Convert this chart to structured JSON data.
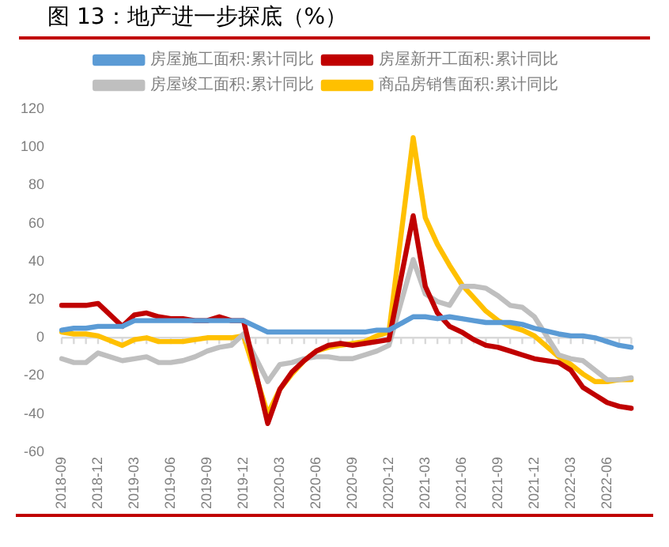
{
  "chart_data": {
    "type": "line",
    "title": "图 13：地产进一步探底（%）",
    "categories": [
      "2018-09",
      null,
      null,
      "2018-12",
      null,
      null,
      "2019-03",
      null,
      null,
      "2019-06",
      null,
      null,
      "2019-09",
      null,
      null,
      "2019-12",
      null,
      null,
      "2020-03",
      null,
      null,
      "2020-06",
      null,
      null,
      "2020-09",
      null,
      null,
      "2020-12",
      null,
      null,
      "2021-03",
      null,
      null,
      "2021-06",
      null,
      null,
      "2021-09",
      null,
      null,
      "2021-12",
      null,
      null,
      "2022-03",
      null,
      null,
      "2022-06",
      null,
      null
    ],
    "series": [
      {
        "name": "房屋施工面积:累计同比",
        "color": "#5b9bd5",
        "values": [
          4,
          5,
          5,
          6,
          null,
          6,
          9,
          9,
          9,
          9,
          9,
          9,
          9,
          9,
          9,
          9,
          null,
          3,
          3,
          3,
          3,
          3,
          3,
          3,
          3,
          3,
          4,
          4,
          null,
          11,
          11,
          10,
          11,
          10,
          9,
          8,
          8,
          8,
          7,
          5,
          null,
          2,
          1,
          1,
          0,
          -2,
          -4,
          -5
        ]
      },
      {
        "name": "房屋新开工面积:累计同比",
        "color": "#c00000",
        "values": [
          17,
          17,
          17,
          18,
          null,
          6,
          12,
          13,
          11,
          10,
          10,
          9,
          9,
          11,
          9,
          9,
          null,
          -45,
          -27,
          -18,
          -12,
          -7,
          -4,
          -3,
          -4,
          -3,
          -2,
          -1,
          null,
          64,
          27,
          13,
          6,
          3,
          -1,
          -4,
          -5,
          -7,
          -9,
          -11,
          null,
          -13,
          -17,
          -26,
          -30,
          -34,
          -36,
          -37
        ]
      },
      {
        "name": "房屋竣工面积:累计同比",
        "color": "#bfbfbf",
        "values": [
          -11,
          -13,
          -13,
          -8,
          null,
          -12,
          -11,
          -10,
          -13,
          -13,
          -12,
          -10,
          -7,
          -5,
          -4,
          2,
          null,
          -23,
          -14,
          -13,
          -11,
          -10,
          -10,
          -11,
          -11,
          -9,
          -7,
          -4,
          null,
          41,
          23,
          19,
          17,
          27,
          27,
          26,
          22,
          17,
          16,
          11,
          null,
          -9,
          -11,
          -12,
          -17,
          -22,
          -22,
          -21
        ]
      },
      {
        "name": "商品房销售面积:累计同比",
        "color": "#ffc000",
        "values": [
          3,
          2,
          2,
          1,
          null,
          -4,
          -1,
          0,
          -2,
          -2,
          -2,
          -1,
          0,
          0,
          0,
          1,
          null,
          -40,
          -27,
          -19,
          -12,
          -7,
          -5,
          -4,
          -3,
          -2,
          1,
          3,
          null,
          105,
          63,
          49,
          38,
          28,
          21,
          14,
          9,
          6,
          4,
          1,
          null,
          -10,
          -14,
          -19,
          -23,
          -23,
          -22,
          -22
        ]
      }
    ],
    "ylim": [
      -60,
      120
    ],
    "yticks": [
      -60,
      -40,
      -20,
      0,
      20,
      40,
      60,
      80,
      100,
      120
    ],
    "grid": false,
    "legend": "top",
    "marker": "none",
    "line_style": "solid",
    "ref_lines": [
      {
        "axis": "y",
        "value": 0,
        "color": "#d9d9d9"
      }
    ]
  }
}
